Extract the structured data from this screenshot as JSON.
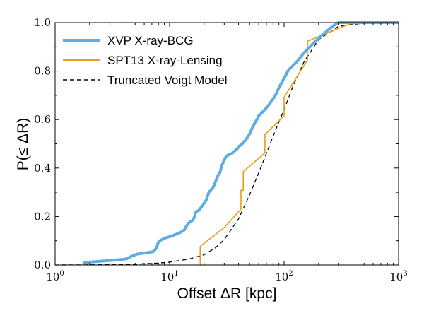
{
  "chart_data": {
    "type": "line",
    "xscale": "log",
    "xlabel": "Offset ΔR [kpc]",
    "ylabel": "P(≤ ΔR)",
    "xlim": [
      1,
      1000
    ],
    "ylim": [
      0,
      1
    ],
    "grid": false,
    "legend_position": "top-left",
    "xticks": [
      {
        "value": 1,
        "base": "10",
        "exp": "0"
      },
      {
        "value": 10,
        "base": "10",
        "exp": "1"
      },
      {
        "value": 100,
        "base": "10",
        "exp": "2"
      },
      {
        "value": 1000,
        "base": "10",
        "exp": "3"
      }
    ],
    "yticks": [
      {
        "value": 0,
        "label": "0.0"
      },
      {
        "value": 0.2,
        "label": "0.2"
      },
      {
        "value": 0.4,
        "label": "0.4"
      },
      {
        "value": 0.6,
        "label": "0.6"
      },
      {
        "value": 0.8,
        "label": "0.8"
      },
      {
        "value": 1.0,
        "label": "1.0"
      }
    ],
    "series": [
      {
        "name": "XVP X-ray-BCG",
        "color": "#5dade2",
        "style": "solid-thick",
        "x": [
          1.8,
          1.8,
          2.4,
          3.3,
          4.2,
          4.6,
          5.2,
          6.2,
          7.2,
          7.7,
          7.9,
          8.2,
          9.0,
          10.5,
          12.5,
          13.5,
          14.0,
          14.8,
          16.0,
          16.5,
          17.0,
          18.0,
          19.0,
          20.0,
          21.0,
          22.0,
          23.0,
          24.0,
          25.5,
          26.5,
          27.5,
          28.5,
          30.5,
          31.5,
          33.0,
          35.0,
          37.0,
          39.0,
          40.5,
          42.0,
          44.0,
          46.0,
          48.5,
          50.5,
          52.0,
          54.0,
          56.0,
          58.0,
          60.0,
          63.0,
          66.0,
          69.0,
          72.0,
          76.0,
          80.0,
          84.0,
          88.0,
          92.0,
          96.0,
          100.0,
          104.0,
          108.0,
          112.0,
          118.0,
          124.0,
          130.0,
          138.0,
          146.0,
          156.0,
          168.0,
          180.0,
          195.0,
          210.0,
          230.0,
          250.0,
          275.0,
          300.0,
          1000.0
        ],
        "y": [
          0.0,
          0.01,
          0.015,
          0.02,
          0.025,
          0.035,
          0.045,
          0.05,
          0.055,
          0.07,
          0.09,
          0.1,
          0.11,
          0.12,
          0.135,
          0.145,
          0.16,
          0.175,
          0.185,
          0.2,
          0.22,
          0.225,
          0.24,
          0.255,
          0.27,
          0.3,
          0.31,
          0.32,
          0.35,
          0.37,
          0.38,
          0.41,
          0.44,
          0.45,
          0.455,
          0.46,
          0.47,
          0.48,
          0.49,
          0.495,
          0.505,
          0.515,
          0.53,
          0.545,
          0.56,
          0.575,
          0.59,
          0.6,
          0.615,
          0.625,
          0.635,
          0.645,
          0.655,
          0.67,
          0.685,
          0.7,
          0.72,
          0.74,
          0.755,
          0.77,
          0.785,
          0.8,
          0.81,
          0.82,
          0.83,
          0.84,
          0.855,
          0.87,
          0.885,
          0.9,
          0.915,
          0.93,
          0.945,
          0.96,
          0.975,
          0.99,
          1.0,
          1.0
        ]
      },
      {
        "name": "SPT13 X-ray-Lensing",
        "color": "#e69f1a",
        "style": "solid",
        "x": [
          18.5,
          18.5,
          30.0,
          42.0,
          42.0,
          44.0,
          44.0,
          68.0,
          68.0,
          100.0,
          100.0,
          160.0,
          160.0,
          400.0,
          1000.0
        ],
        "y": [
          0.0,
          0.077,
          0.154,
          0.231,
          0.308,
          0.308,
          0.385,
          0.462,
          0.538,
          0.615,
          0.692,
          0.846,
          0.923,
          1.0,
          1.0
        ]
      },
      {
        "name": "Truncated Voigt Model",
        "color": "#000000",
        "style": "dashed",
        "x": [
          1,
          3,
          5,
          8,
          10,
          15,
          20,
          25,
          30,
          40,
          50,
          60,
          70,
          80,
          90,
          100,
          120,
          150,
          200,
          300,
          500,
          1000
        ],
        "y": [
          0.0,
          0.001,
          0.003,
          0.008,
          0.012,
          0.025,
          0.042,
          0.07,
          0.105,
          0.19,
          0.29,
          0.38,
          0.46,
          0.53,
          0.59,
          0.64,
          0.74,
          0.84,
          0.93,
          0.985,
          0.998,
          1.0
        ]
      }
    ]
  }
}
